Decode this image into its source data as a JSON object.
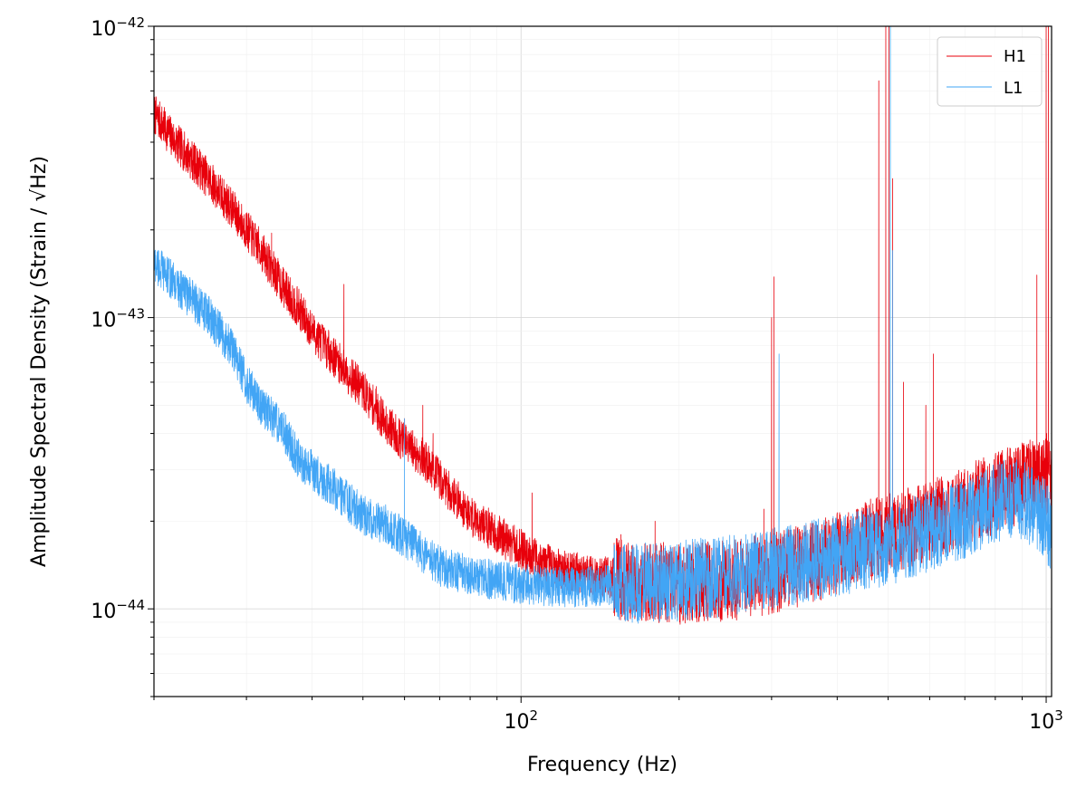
{
  "chart_data": {
    "type": "line",
    "title": "",
    "xlabel": "Frequency (Hz)",
    "ylabel": "Amplitude Spectral Density (Strain / √Hz)",
    "xscale": "log",
    "yscale": "log",
    "xlim": [
      20,
      1024
    ],
    "ylim": [
      5e-45,
      1e-42
    ],
    "grid": "major and minor, light gray",
    "legend": {
      "position": "top-right",
      "entries": [
        "H1",
        "L1"
      ]
    },
    "x_tick_labels": [
      {
        "value": 100,
        "base": "10",
        "exp": "2"
      },
      {
        "value": 1000,
        "base": "10",
        "exp": "3"
      }
    ],
    "y_tick_labels": [
      {
        "value": 1e-44,
        "base": "10",
        "exp": "−44"
      },
      {
        "value": 1e-43,
        "base": "10",
        "exp": "−43"
      },
      {
        "value": 1e-42,
        "base": "10",
        "exp": "−42"
      }
    ],
    "series": [
      {
        "name": "H1",
        "color": "#e8000b",
        "baseline": [
          [
            20,
            5e-43
          ],
          [
            22,
            4e-43
          ],
          [
            25,
            3.1e-43
          ],
          [
            28,
            2.4e-43
          ],
          [
            30,
            2e-43
          ],
          [
            32,
            1.7e-43
          ],
          [
            35,
            1.3e-43
          ],
          [
            38,
            1.05e-43
          ],
          [
            40,
            9e-44
          ],
          [
            45,
            7e-44
          ],
          [
            50,
            5.6e-44
          ],
          [
            55,
            4.4e-44
          ],
          [
            60,
            3.7e-44
          ],
          [
            65,
            3.3e-44
          ],
          [
            70,
            2.8e-44
          ],
          [
            75,
            2.4e-44
          ],
          [
            80,
            2.1e-44
          ],
          [
            90,
            1.8e-44
          ],
          [
            100,
            1.6e-44
          ],
          [
            110,
            1.45e-44
          ],
          [
            120,
            1.35e-44
          ],
          [
            140,
            1.3e-44
          ],
          [
            160,
            1.25e-44
          ],
          [
            200,
            1.22e-44
          ],
          [
            250,
            1.25e-44
          ],
          [
            300,
            1.32e-44
          ],
          [
            350,
            1.42e-44
          ],
          [
            400,
            1.55e-44
          ],
          [
            450,
            1.7e-44
          ],
          [
            500,
            1.8e-44
          ],
          [
            600,
            2e-44
          ],
          [
            700,
            2.25e-44
          ],
          [
            800,
            2.5e-44
          ],
          [
            900,
            2.7e-44
          ],
          [
            950,
            2.8e-44
          ],
          [
            1000,
            2.9e-44
          ],
          [
            1024,
            3e-44
          ]
        ],
        "spikes": [
          [
            33.5,
            1.95e-43
          ],
          [
            36,
            1.1e-43
          ],
          [
            46,
            1.3e-43
          ],
          [
            53,
            5.8e-44
          ],
          [
            60,
            4.5e-44
          ],
          [
            65,
            5e-44
          ],
          [
            68,
            4e-44
          ],
          [
            105,
            2.5e-44
          ],
          [
            155,
            1.8e-44
          ],
          [
            180,
            2e-44
          ],
          [
            290,
            2.2e-44
          ],
          [
            300,
            1e-43
          ],
          [
            303,
            1.38e-43
          ],
          [
            480,
            6.5e-43
          ],
          [
            495,
            1e-42
          ],
          [
            502,
            1e-42
          ],
          [
            510,
            3e-43
          ],
          [
            535,
            6e-44
          ],
          [
            590,
            5e-44
          ],
          [
            610,
            7.5e-44
          ],
          [
            960,
            1.4e-43
          ],
          [
            1000,
            1e-42
          ],
          [
            1010,
            1e-42
          ]
        ]
      },
      {
        "name": "L1",
        "color": "#42a5f5",
        "baseline": [
          [
            20,
            1.55e-43
          ],
          [
            22,
            1.3e-43
          ],
          [
            25,
            1.05e-43
          ],
          [
            28,
            8e-44
          ],
          [
            30,
            6e-44
          ],
          [
            32,
            5e-44
          ],
          [
            35,
            4.2e-44
          ],
          [
            38,
            3.2e-44
          ],
          [
            40,
            3e-44
          ],
          [
            45,
            2.5e-44
          ],
          [
            50,
            2.1e-44
          ],
          [
            55,
            1.95e-44
          ],
          [
            60,
            1.75e-44
          ],
          [
            65,
            1.55e-44
          ],
          [
            70,
            1.4e-44
          ],
          [
            80,
            1.3e-44
          ],
          [
            90,
            1.25e-44
          ],
          [
            100,
            1.22e-44
          ],
          [
            120,
            1.18e-44
          ],
          [
            140,
            1.2e-44
          ],
          [
            160,
            1.22e-44
          ],
          [
            200,
            1.25e-44
          ],
          [
            250,
            1.3e-44
          ],
          [
            300,
            1.38e-44
          ],
          [
            350,
            1.45e-44
          ],
          [
            400,
            1.52e-44
          ],
          [
            450,
            1.6e-44
          ],
          [
            500,
            1.65e-44
          ],
          [
            600,
            1.85e-44
          ],
          [
            700,
            2.05e-44
          ],
          [
            800,
            2.3e-44
          ],
          [
            850,
            2.4e-44
          ],
          [
            900,
            2.35e-44
          ],
          [
            950,
            2.2e-44
          ],
          [
            1000,
            2e-44
          ],
          [
            1024,
            1.8e-44
          ]
        ],
        "spikes": [
          [
            60,
            4.5e-44
          ],
          [
            310,
            7.5e-44
          ],
          [
            505,
            1e-42
          ],
          [
            510,
            1.7e-43
          ],
          [
            600,
            2.5e-44
          ]
        ]
      }
    ]
  }
}
